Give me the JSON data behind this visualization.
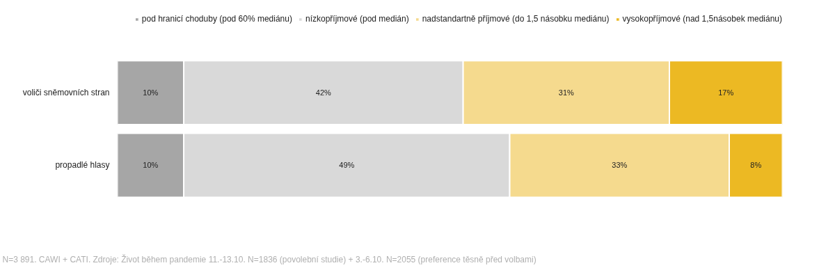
{
  "chart_data": {
    "type": "bar",
    "orientation": "horizontal",
    "stacked": true,
    "legend": "top right",
    "grid": false,
    "categories": [
      "voliči sněmovních stran",
      "propadlé hlasy"
    ],
    "series": [
      {
        "name": "pod hranicí choduby (pod 60% mediánu)",
        "color": "#a6a6a6",
        "values": [
          10,
          10
        ],
        "value_labels": [
          "10%",
          "10%"
        ]
      },
      {
        "name": "nízkopříjmové (pod medián)",
        "color": "#d9d9d9",
        "values": [
          42,
          49
        ],
        "value_labels": [
          "42%",
          "49%"
        ]
      },
      {
        "name": "nadstandartně příjmové (do 1,5 násobku mediánu)",
        "color": "#f5da8e",
        "values": [
          31,
          33
        ],
        "value_labels": [
          "31%",
          "33%"
        ]
      },
      {
        "name": "vysokopříjmové (nad 1,5násobek mediánu)",
        "color": "#ecb923",
        "values": [
          17,
          8
        ],
        "value_labels": [
          "17%",
          "8%"
        ]
      }
    ],
    "annotations": [
      "N=3 891. CAWI + CATI. Zdroje: Život během pandemie 11.-13.10. N=1836 (povolební studie) + 3.-6.10. N=2055 (preference těsně před volbami)"
    ]
  }
}
